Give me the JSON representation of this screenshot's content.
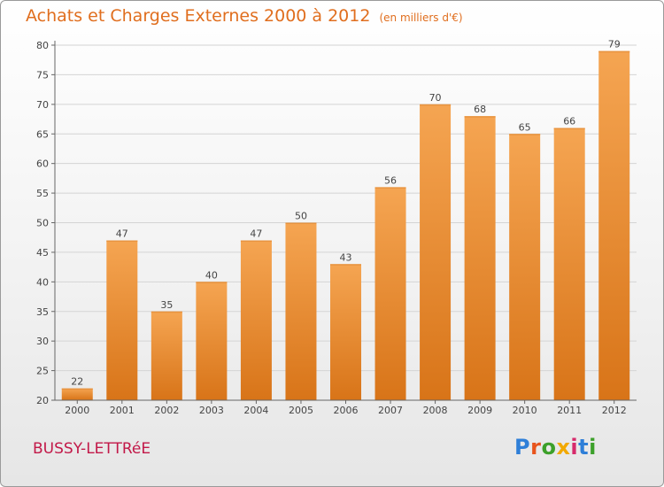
{
  "title": "Achats et Charges Externes 2000 à 2012",
  "unit": "(en milliers d'€)",
  "commune": "BUSSY-LETTRéE",
  "logo": {
    "p": "P",
    "r": "r",
    "o": "o",
    "x": "x",
    "i1": "i",
    "t": "t",
    "i2": "i"
  },
  "colors": {
    "bar_light": "#f5a552",
    "bar_dark": "#d87418",
    "title": "#e06e1e",
    "commune": "#c21848"
  },
  "chart_data": {
    "type": "bar",
    "title": "Achats et Charges Externes 2000 à 2012",
    "subtitle": "(en milliers d'€)",
    "xlabel": "",
    "ylabel": "",
    "categories": [
      "2000",
      "2001",
      "2002",
      "2003",
      "2004",
      "2005",
      "2006",
      "2007",
      "2008",
      "2009",
      "2010",
      "2011",
      "2012"
    ],
    "values": [
      22,
      47,
      35,
      40,
      47,
      50,
      43,
      56,
      70,
      68,
      65,
      66,
      79
    ],
    "ylim": [
      20,
      80
    ],
    "yticks": [
      20,
      25,
      30,
      35,
      40,
      45,
      50,
      55,
      60,
      65,
      70,
      75,
      80
    ],
    "grid": true,
    "legend": "none"
  }
}
